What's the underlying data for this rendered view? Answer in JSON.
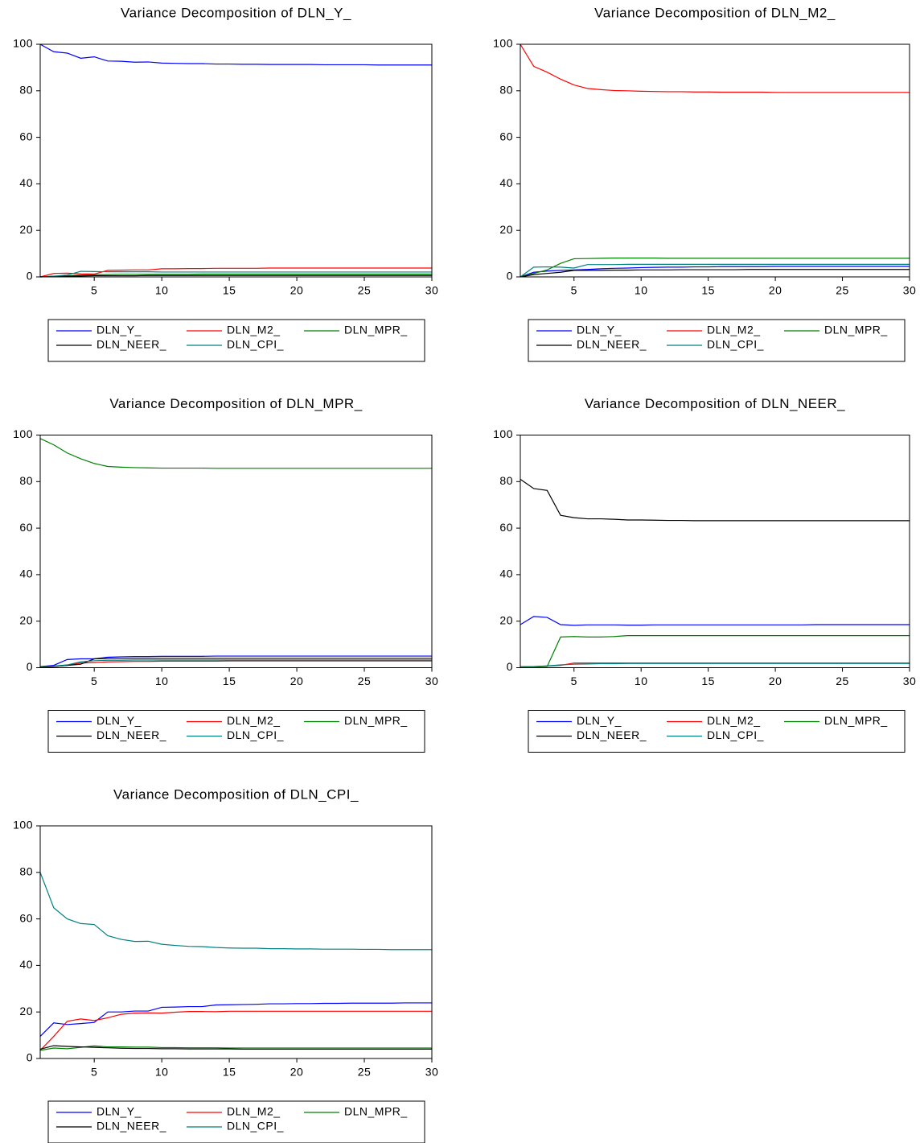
{
  "chart_data": [
    {
      "type": "line",
      "title": "Variance Decomposition of DLN_Y_",
      "x": [
        1,
        2,
        3,
        4,
        5,
        6,
        7,
        8,
        9,
        10,
        11,
        12,
        13,
        14,
        15,
        16,
        17,
        18,
        19,
        20,
        21,
        22,
        23,
        24,
        25,
        26,
        27,
        28,
        29,
        30
      ],
      "xlim": [
        1,
        30
      ],
      "xticks": [
        5,
        10,
        15,
        20,
        25,
        30
      ],
      "ylim": [
        0,
        100
      ],
      "yticks": [
        0,
        20,
        40,
        60,
        80,
        100
      ],
      "legend": "bottom",
      "series": [
        {
          "name": "DLN_Y_",
          "color": "#0000ff",
          "values": [
            100,
            96.8,
            96.2,
            94,
            94.6,
            92.8,
            92.7,
            92.3,
            92.4,
            91.9,
            91.8,
            91.7,
            91.7,
            91.5,
            91.5,
            91.4,
            91.4,
            91.3,
            91.3,
            91.3,
            91.3,
            91.2,
            91.2,
            91.2,
            91.2,
            91.1,
            91.1,
            91.1,
            91.1,
            91.1
          ]
        },
        {
          "name": "DLN_M2_",
          "color": "#ff0000",
          "values": [
            0,
            1.5,
            1.6,
            1.3,
            1.2,
            2.8,
            2.9,
            3.0,
            3.0,
            3.5,
            3.5,
            3.6,
            3.6,
            3.7,
            3.7,
            3.7,
            3.7,
            3.8,
            3.8,
            3.8,
            3.8,
            3.8,
            3.8,
            3.8,
            3.8,
            3.8,
            3.8,
            3.8,
            3.8,
            3.8
          ]
        },
        {
          "name": "DLN_MPR_",
          "color": "#008000",
          "values": [
            0,
            0.3,
            0.4,
            0.8,
            0.9,
            1.0,
            1.1,
            1.1,
            1.1,
            1.1,
            1.1,
            1.1,
            1.2,
            1.2,
            1.2,
            1.2,
            1.2,
            1.2,
            1.2,
            1.2,
            1.2,
            1.2,
            1.2,
            1.2,
            1.2,
            1.2,
            1.2,
            1.2,
            1.2,
            1.2
          ]
        },
        {
          "name": "DLN_NEER_",
          "color": "#000000",
          "values": [
            0,
            0.2,
            0.3,
            0.4,
            0.5,
            0.5,
            0.5,
            0.5,
            0.6,
            0.6,
            0.6,
            0.6,
            0.6,
            0.6,
            0.6,
            0.6,
            0.6,
            0.6,
            0.6,
            0.6,
            0.6,
            0.6,
            0.6,
            0.6,
            0.6,
            0.6,
            0.6,
            0.6,
            0.6,
            0.6
          ]
        },
        {
          "name": "DLN_CPI_",
          "color": "#008080",
          "values": [
            0,
            0.3,
            0.8,
            2.4,
            2.3,
            2.2,
            2.2,
            2.2,
            2.2,
            2.1,
            2.1,
            2.1,
            2.1,
            2.1,
            2.1,
            2.1,
            2.1,
            2.1,
            2.1,
            2.1,
            2.1,
            2.1,
            2.1,
            2.1,
            2.1,
            2.1,
            2.1,
            2.1,
            2.1,
            2.1
          ]
        }
      ]
    },
    {
      "type": "line",
      "title": "Variance Decomposition of DLN_M2_",
      "x": [
        1,
        2,
        3,
        4,
        5,
        6,
        7,
        8,
        9,
        10,
        11,
        12,
        13,
        14,
        15,
        16,
        17,
        18,
        19,
        20,
        21,
        22,
        23,
        24,
        25,
        26,
        27,
        28,
        29,
        30
      ],
      "xlim": [
        1,
        30
      ],
      "xticks": [
        5,
        10,
        15,
        20,
        25,
        30
      ],
      "ylim": [
        0,
        100
      ],
      "yticks": [
        0,
        20,
        40,
        60,
        80,
        100
      ],
      "legend": "bottom",
      "series": [
        {
          "name": "DLN_Y_",
          "color": "#0000ff",
          "values": [
            0,
            2,
            2.5,
            2.8,
            3,
            3.2,
            3.5,
            3.7,
            3.8,
            4.0,
            4.1,
            4.2,
            4.2,
            4.3,
            4.3,
            4.4,
            4.4,
            4.4,
            4.4,
            4.5,
            4.5,
            4.5,
            4.5,
            4.5,
            4.5,
            4.5,
            4.5,
            4.5,
            4.5,
            4.5
          ]
        },
        {
          "name": "DLN_M2_",
          "color": "#ff0000",
          "values": [
            100,
            90.5,
            88,
            85,
            82.5,
            81,
            80.5,
            80.1,
            80,
            79.8,
            79.7,
            79.6,
            79.6,
            79.5,
            79.5,
            79.4,
            79.4,
            79.4,
            79.4,
            79.3,
            79.3,
            79.3,
            79.3,
            79.3,
            79.3,
            79.3,
            79.3,
            79.3,
            79.3,
            79.3
          ]
        },
        {
          "name": "DLN_MPR_",
          "color": "#008000",
          "values": [
            0,
            1.5,
            3,
            5.8,
            7.8,
            7.9,
            8,
            8.1,
            8.1,
            8.1,
            8.1,
            8.0,
            8.0,
            8.0,
            8.0,
            8.0,
            8.0,
            8.0,
            8.0,
            8.0,
            8.0,
            8.0,
            8.0,
            8.0,
            8.0,
            8.0,
            8.0,
            8.0,
            8.0,
            8.0
          ]
        },
        {
          "name": "DLN_NEER_",
          "color": "#000000",
          "values": [
            0,
            1,
            1.5,
            2,
            2.8,
            2.8,
            2.8,
            2.9,
            2.9,
            3.0,
            3.0,
            3.0,
            3.1,
            3.1,
            3.1,
            3.1,
            3.1,
            3.2,
            3.2,
            3.2,
            3.2,
            3.2,
            3.2,
            3.2,
            3.2,
            3.2,
            3.2,
            3.2,
            3.2,
            3.2
          ]
        },
        {
          "name": "DLN_CPI_",
          "color": "#008080",
          "values": [
            0,
            4.2,
            4.3,
            4.2,
            3.8,
            5.3,
            5.3,
            5.3,
            5.4,
            5.4,
            5.4,
            5.4,
            5.4,
            5.4,
            5.4,
            5.4,
            5.4,
            5.4,
            5.4,
            5.4,
            5.4,
            5.4,
            5.4,
            5.4,
            5.4,
            5.4,
            5.4,
            5.4,
            5.4,
            5.4
          ]
        }
      ]
    },
    {
      "type": "line",
      "title": "Variance Decomposition of DLN_MPR_",
      "x": [
        1,
        2,
        3,
        4,
        5,
        6,
        7,
        8,
        9,
        10,
        11,
        12,
        13,
        14,
        15,
        16,
        17,
        18,
        19,
        20,
        21,
        22,
        23,
        24,
        25,
        26,
        27,
        28,
        29,
        30
      ],
      "xlim": [
        1,
        30
      ],
      "xticks": [
        5,
        10,
        15,
        20,
        25,
        30
      ],
      "ylim": [
        0,
        100
      ],
      "yticks": [
        0,
        20,
        40,
        60,
        80,
        100
      ],
      "legend": "bottom",
      "series": [
        {
          "name": "DLN_Y_",
          "color": "#0000ff",
          "values": [
            0.5,
            1,
            3.5,
            3.8,
            3.8,
            4.5,
            4.7,
            4.8,
            4.8,
            4.9,
            4.9,
            4.9,
            4.9,
            5,
            5,
            5,
            5,
            5,
            5,
            5,
            5,
            5,
            5,
            5,
            5,
            5,
            5,
            5,
            5,
            5
          ]
        },
        {
          "name": "DLN_M2_",
          "color": "#ff0000",
          "values": [
            0.2,
            0.5,
            1,
            2,
            2.2,
            2.5,
            2.6,
            2.7,
            2.7,
            2.8,
            2.8,
            2.8,
            2.8,
            2.8,
            2.9,
            2.9,
            2.9,
            2.9,
            2.9,
            2.9,
            2.9,
            2.9,
            2.9,
            2.9,
            2.9,
            2.9,
            2.9,
            2.9,
            2.9,
            2.9
          ]
        },
        {
          "name": "DLN_MPR_",
          "color": "#008000",
          "values": [
            98.5,
            95.8,
            92.3,
            89.8,
            87.8,
            86.5,
            86.2,
            86.0,
            85.9,
            85.8,
            85.8,
            85.8,
            85.8,
            85.7,
            85.7,
            85.7,
            85.7,
            85.7,
            85.7,
            85.7,
            85.7,
            85.7,
            85.7,
            85.7,
            85.7,
            85.7,
            85.7,
            85.7,
            85.7,
            85.7
          ]
        },
        {
          "name": "DLN_NEER_",
          "color": "#000000",
          "values": [
            0.3,
            0.5,
            1,
            1.5,
            3.8,
            4.0,
            4.0,
            4.0,
            4.0,
            4.0,
            4.0,
            4.0,
            4.0,
            4.0,
            4.0,
            4.0,
            4.0,
            4.0,
            4.0,
            4.0,
            4.0,
            4.0,
            4.0,
            4.0,
            4.0,
            4.0,
            4.0,
            4.0,
            4.0,
            4.0
          ]
        },
        {
          "name": "DLN_CPI_",
          "color": "#008080",
          "values": [
            0.5,
            0.7,
            1.2,
            2.5,
            3.0,
            3.2,
            3.2,
            3.3,
            3.3,
            3.3,
            3.3,
            3.3,
            3.3,
            3.3,
            3.3,
            3.3,
            3.3,
            3.3,
            3.3,
            3.3,
            3.3,
            3.3,
            3.3,
            3.3,
            3.3,
            3.3,
            3.3,
            3.3,
            3.3,
            3.3
          ]
        }
      ]
    },
    {
      "type": "line",
      "title": "Variance Decomposition of DLN_NEER_",
      "x": [
        1,
        2,
        3,
        4,
        5,
        6,
        7,
        8,
        9,
        10,
        11,
        12,
        13,
        14,
        15,
        16,
        17,
        18,
        19,
        20,
        21,
        22,
        23,
        24,
        25,
        26,
        27,
        28,
        29,
        30
      ],
      "xlim": [
        1,
        30
      ],
      "xticks": [
        5,
        10,
        15,
        20,
        25,
        30
      ],
      "ylim": [
        0,
        100
      ],
      "yticks": [
        0,
        20,
        40,
        60,
        80,
        100
      ],
      "legend": "bottom",
      "series": [
        {
          "name": "DLN_Y_",
          "color": "#0000ff",
          "values": [
            18.5,
            22,
            21.6,
            18.5,
            18.2,
            18.4,
            18.4,
            18.4,
            18.3,
            18.3,
            18.4,
            18.4,
            18.4,
            18.4,
            18.4,
            18.4,
            18.4,
            18.4,
            18.4,
            18.4,
            18.4,
            18.4,
            18.5,
            18.5,
            18.5,
            18.5,
            18.5,
            18.5,
            18.5,
            18.5
          ]
        },
        {
          "name": "DLN_M2_",
          "color": "#ff0000",
          "values": [
            0,
            0.5,
            0.7,
            1,
            2,
            2,
            2,
            2,
            2,
            2,
            2,
            2,
            2,
            2,
            2,
            2,
            2,
            2,
            2,
            2,
            2,
            2,
            2,
            2,
            2,
            2,
            2,
            2,
            2,
            2
          ]
        },
        {
          "name": "DLN_MPR_",
          "color": "#008000",
          "values": [
            0,
            0.3,
            0.5,
            13.2,
            13.4,
            13.2,
            13.2,
            13.4,
            13.8,
            13.8,
            13.8,
            13.8,
            13.8,
            13.8,
            13.8,
            13.8,
            13.8,
            13.8,
            13.8,
            13.8,
            13.8,
            13.8,
            13.8,
            13.8,
            13.8,
            13.8,
            13.8,
            13.8,
            13.8,
            13.8
          ]
        },
        {
          "name": "DLN_NEER_",
          "color": "#000000",
          "values": [
            81,
            77,
            76.2,
            65.5,
            64.5,
            64,
            64,
            63.8,
            63.5,
            63.5,
            63.4,
            63.3,
            63.3,
            63.2,
            63.2,
            63.2,
            63.2,
            63.2,
            63.2,
            63.2,
            63.2,
            63.2,
            63.2,
            63.2,
            63.2,
            63.2,
            63.2,
            63.2,
            63.2,
            63.2
          ]
        },
        {
          "name": "DLN_CPI_",
          "color": "#008080",
          "values": [
            0.5,
            0.5,
            0.8,
            1.2,
            1.5,
            1.6,
            1.7,
            1.7,
            1.8,
            1.8,
            1.8,
            1.8,
            1.8,
            1.8,
            1.8,
            1.8,
            1.8,
            1.8,
            1.8,
            1.8,
            1.8,
            1.8,
            1.8,
            1.8,
            1.8,
            1.8,
            1.8,
            1.8,
            1.8,
            1.8
          ]
        }
      ]
    },
    {
      "type": "line",
      "title": "Variance Decomposition of DLN_CPI_",
      "x": [
        1,
        2,
        3,
        4,
        5,
        6,
        7,
        8,
        9,
        10,
        11,
        12,
        13,
        14,
        15,
        16,
        17,
        18,
        19,
        20,
        21,
        22,
        23,
        24,
        25,
        26,
        27,
        28,
        29,
        30
      ],
      "xlim": [
        1,
        30
      ],
      "xticks": [
        5,
        10,
        15,
        20,
        25,
        30
      ],
      "ylim": [
        0,
        100
      ],
      "yticks": [
        0,
        20,
        40,
        60,
        80,
        100
      ],
      "legend": "bottom",
      "series": [
        {
          "name": "DLN_Y_",
          "color": "#0000ff",
          "values": [
            9.5,
            15.3,
            14.6,
            15,
            15.5,
            20,
            20,
            20.4,
            20.4,
            22,
            22.1,
            22.3,
            22.3,
            23,
            23.1,
            23.2,
            23.3,
            23.5,
            23.5,
            23.6,
            23.6,
            23.7,
            23.7,
            23.8,
            23.8,
            23.8,
            23.8,
            23.9,
            23.9,
            23.9
          ]
        },
        {
          "name": "DLN_M2_",
          "color": "#ff0000",
          "values": [
            3.5,
            9.5,
            16,
            17,
            16.3,
            17.5,
            19,
            19.5,
            19.6,
            19.5,
            19.9,
            20.2,
            20.2,
            20.1,
            20.3,
            20.3,
            20.3,
            20.3,
            20.3,
            20.3,
            20.3,
            20.3,
            20.3,
            20.3,
            20.3,
            20.3,
            20.3,
            20.3,
            20.3,
            20.3
          ]
        },
        {
          "name": "DLN_MPR_",
          "color": "#008000",
          "values": [
            3.5,
            4.5,
            4.2,
            4.8,
            5.4,
            5,
            5,
            4.9,
            4.9,
            4.7,
            4.7,
            4.6,
            4.6,
            4.6,
            4.5,
            4.5,
            4.5,
            4.5,
            4.5,
            4.5,
            4.5,
            4.5,
            4.5,
            4.5,
            4.5,
            4.5,
            4.5,
            4.5,
            4.5,
            4.5
          ]
        },
        {
          "name": "DLN_NEER_",
          "color": "#000000",
          "values": [
            4,
            5.5,
            5.2,
            5,
            4.8,
            4.6,
            4.4,
            4.3,
            4.3,
            4.2,
            4.2,
            4.1,
            4.1,
            4.1,
            4.1,
            4.0,
            4.0,
            4.0,
            4.0,
            4.0,
            4.0,
            4.0,
            4.0,
            4.0,
            4.0,
            4.0,
            4.0,
            4.0,
            4.0,
            4.0
          ]
        },
        {
          "name": "DLN_CPI_",
          "color": "#008080",
          "values": [
            80,
            64.8,
            60,
            58,
            57.6,
            52.8,
            51.2,
            50.3,
            50.4,
            49.1,
            48.6,
            48.2,
            48.1,
            47.7,
            47.5,
            47.4,
            47.4,
            47.2,
            47.2,
            47.1,
            47.1,
            47.0,
            47.0,
            47.0,
            46.9,
            46.9,
            46.8,
            46.8,
            46.8,
            46.8
          ]
        }
      ]
    }
  ]
}
